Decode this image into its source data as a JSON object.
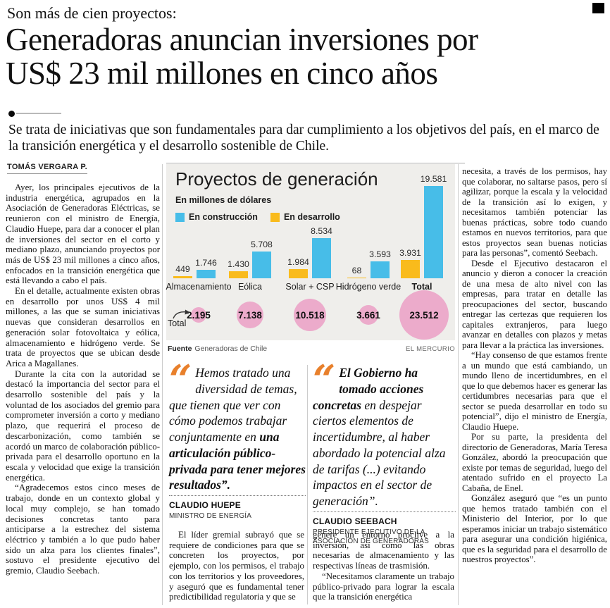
{
  "page": {
    "kicker": "Son más de cien proyectos:",
    "headline_line1": "Generadoras anuncian inversiones por",
    "headline_line2": "US$ 23 mil millones en cinco años",
    "subhead": "Se trata de iniciativas que son fundamentales para dar cumplimiento a los objetivos del país, en el marco de la transición energética y el desarrollo sostenible de Chile.",
    "byline": "TOMÁS VERGARA P."
  },
  "article": {
    "col1": [
      "Ayer, los principales ejecutivos de la industria energética, agrupados en la Asociación de Generadoras Eléctricas, se reunieron con el ministro de Energía, Claudio Huepe, para dar a conocer el plan de inversiones del sector en el corto y mediano plazo, anunciando proyectos por más de US$ 23 mil millones a cinco años, enfocados en la transición energética que está llevando a cabo el país.",
      "En el detalle, actualmente existen obras en desarrollo por unos US$ 4 mil millones, a las que se suman iniciativas nuevas que consideran desarrollos en generación solar fotovoltaica y eólica, almacenamiento e hidrógeno verde. Se trata de proyectos que se ubican desde Arica a Magallanes.",
      "Durante la cita con la autoridad se destacó la importancia del sector para el desarrollo sostenible del país y la voluntad de los asociados del gremio para comprometer inversión a corto y mediano plazo, que requerirá el proceso de descarbonización, como también se acordó un marco de colaboración público-privada para el desarrollo oportuno en la escala y velocidad que exige la transición energética.",
      "“Agradecemos estos cinco meses de trabajo, donde en un contexto global y local muy complejo, se han tomado decisiones concretas tanto para anticiparse a la estrechez del sistema eléctrico y también a lo que pudo haber sido un alza para los clientes finales”, sostuvo el presidente ejecutivo del gremio, Claudio Seebach."
    ],
    "col2": [
      "El líder gremial subrayó que se requiere de condiciones para que se concreten los proyectos, por ejemplo, con los permisos, el trabajo con los territorios y los proveedores, y aseguró que es fundamental tener predictibilidad regulatoria y que se"
    ],
    "col3": [
      "genere un entorno proclive a la inversión, así como las obras necesarias de almacenamiento y las respectivas líneas de trasmisión.",
      "“Necesitamos claramente un trabajo público-privado para lograr la escala que la transición energética"
    ],
    "col4": [
      "necesita, a través de los permisos, hay que colaborar, no saltarse pasos, pero sí agilizar, porque la escala y la velocidad de la transición así lo exigen, y necesitamos también potenciar las buenas prácticas, sobre todo cuando estamos en nuevos territorios, para que estos proyectos sean buenas noticias para las personas”, comentó Seebach.",
      "Desde el Ejecutivo destacaron el anuncio y dieron a conocer la creación de una mesa de alto nivel con las empresas, para tratar en detalle las preocupaciones del sector, buscando entregar las certezas que requieren los capitales extranjeros, para luego avanzar en detalles con plazos y metas para llevar a la práctica las inversiones.",
      "“Hay consenso de que estamos frente a un mundo que está cambiando, un mundo lleno de incertidumbres, en el que lo que debemos hacer es generar las certidumbres necesarias para que el sector se pueda desarrollar en todo su potencial”, dijo el ministro de Energía, Claudio Huepe.",
      "Por su parte, la presidenta del directorio de Generadoras, María Teresa González, abordó la preocupación que existe por temas de seguridad, luego del atentado sufrido en el proyecto La Cabaña, de Enel.",
      "González aseguró que “es un punto que hemos tratado también con el Ministerio del Interior, por lo que esperamos iniciar un trabajo sistemático para asegurar una condición higiénica, que es la seguridad para el desarrollo de nuestros proyectos”."
    ]
  },
  "quotes": [
    {
      "prefix_plain": "Hemos tratado una diversidad de temas, que tienen que ver con cómo podemos trabajar conjuntamente en ",
      "bold": "una articulación público-privada para tener mejores resultados”.",
      "suffix_plain": "",
      "name": "CLAUDIO HUEPE",
      "role": "MINISTRO DE ENERGÍA"
    },
    {
      "prefix_plain": "",
      "bold": "El Gobierno ha tomado acciones concretas",
      "suffix_plain": " en despejar ciertos elementos de incertidumbre, al haber abordado la potencial alza de tarifas (...) evitando impactos en el sector de generación”.",
      "name": "CLAUDIO SEEBACH",
      "role": "PRESIDENTE EJECUTIVO DE LA ASOCIACIÓN DE GENERADORAS"
    }
  ],
  "chart_data": {
    "type": "bar",
    "title": "Proyectos de generación",
    "subtitle": "En millones de dólares",
    "categories": [
      "Almacenamiento",
      "Eólica",
      "Solar + CSP",
      "Hidrógeno verde",
      "Total"
    ],
    "series": [
      {
        "name": "En desarrollo",
        "color": "#f9bb1c",
        "values": [
          449,
          1430,
          1984,
          68,
          3931
        ],
        "labels": [
          "449",
          "1.430",
          "1.984",
          "68",
          "3.931"
        ]
      },
      {
        "name": "En construcción",
        "color": "#47bde8",
        "values": [
          1746,
          5708,
          8534,
          3593,
          19581
        ],
        "labels": [
          "1.746",
          "5.708",
          "8.534",
          "3.593",
          "19.581"
        ]
      }
    ],
    "legend_items": [
      {
        "label": "En construcción",
        "color": "#47bde8"
      },
      {
        "label": "En desarrollo",
        "color": "#f9bb1c"
      }
    ],
    "totals": {
      "values": [
        2195,
        7138,
        10518,
        3661,
        23512
      ],
      "labels": [
        "2.195",
        "7.138",
        "10.518",
        "3.661",
        "23.512"
      ],
      "color": "#ecabcb",
      "annotation": "Total"
    },
    "ylim": [
      0,
      19581
    ],
    "grid": false,
    "legend_position": "top-left",
    "source_label": "Fuente",
    "source": "Generadoras de Chile",
    "credit": "EL MERCURIO"
  }
}
